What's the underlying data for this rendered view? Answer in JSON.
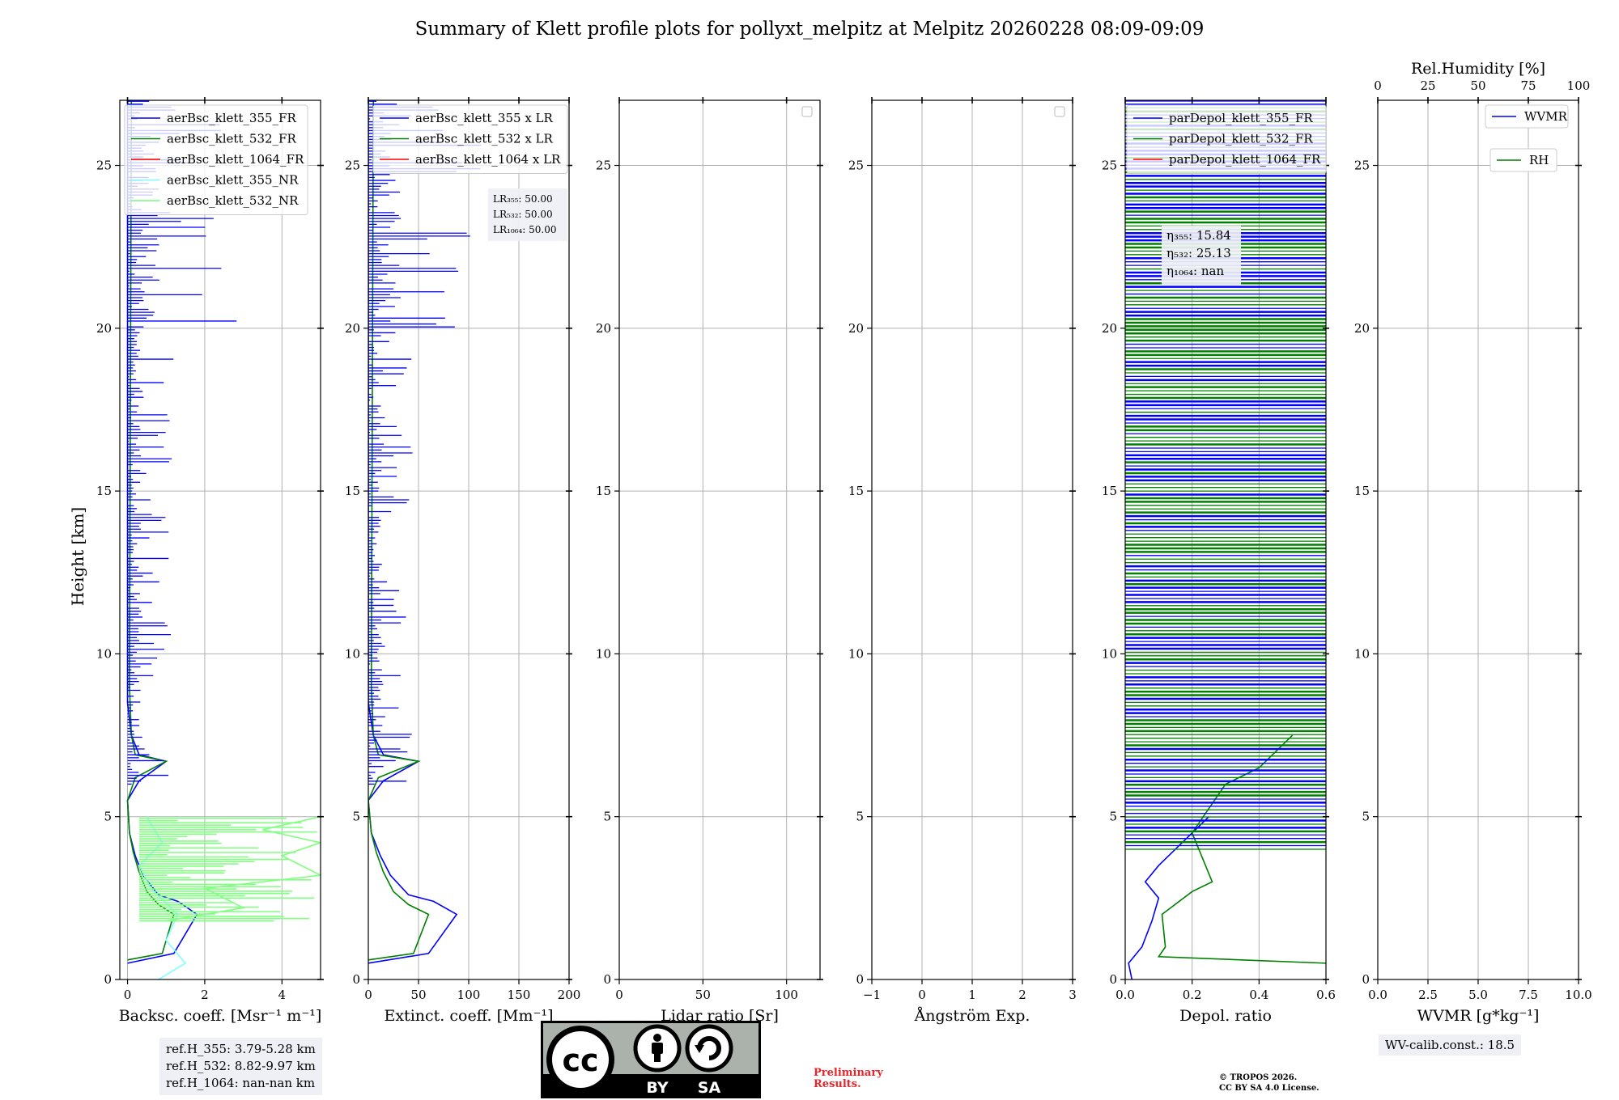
{
  "title": "Summary of Klett profile plots for pollyxt_melpitz at Melpitz 20260228 08:09-09:09",
  "colors": {
    "blue": "#0000ff",
    "green": "#008000",
    "red": "#ff0000",
    "cyan": "#80ffff",
    "lightgreen": "#80ff80"
  },
  "chart_data": [
    {
      "type": "line",
      "id": "backscatter",
      "xlabel": "Backsc. coeff. [Msr⁻¹ m⁻¹]",
      "ylabel": "Height [km]",
      "xlim": [
        -0.2,
        5
      ],
      "ylim": [
        0,
        27
      ],
      "xticks": [
        0,
        2,
        4
      ],
      "yticks": [
        0,
        5,
        10,
        15,
        20,
        25
      ],
      "grid": true,
      "legend": [
        "aerBsc_klett_355_FR",
        "aerBsc_klett_532_FR",
        "aerBsc_klett_1064_FR",
        "aerBsc_klett_355_NR",
        "aerBsc_klett_532_NR"
      ],
      "legend_colors": [
        "#0000ff",
        "#008000",
        "#ff0000",
        "#80ffff",
        "#80ff80"
      ],
      "series": [
        {
          "name": "aerBsc_klett_355_FR",
          "color": "#0000ff",
          "x": [
            0.0,
            1.2,
            1.8,
            1.3,
            0.8,
            0.4,
            0.2,
            0.05,
            0.0,
            0.3,
            1.0,
            0.3,
            0.1,
            0.0,
            0.0
          ],
          "y": [
            0.5,
            0.8,
            2.0,
            2.4,
            2.6,
            3.2,
            3.8,
            4.5,
            5.5,
            6.1,
            6.7,
            6.9,
            7.5,
            8.5,
            27
          ]
        },
        {
          "name": "aerBsc_klett_532_FR",
          "color": "#008000",
          "x": [
            0.0,
            0.9,
            1.2,
            0.8,
            0.5,
            0.3,
            0.15,
            0.05,
            0.0,
            0.2,
            1.0,
            0.2,
            0.1,
            0.05,
            0.1
          ],
          "y": [
            0.6,
            0.8,
            2.0,
            2.3,
            2.7,
            3.3,
            3.9,
            4.5,
            5.5,
            6.2,
            6.7,
            6.9,
            7.5,
            9.0,
            27
          ]
        },
        {
          "name": "aerBsc_klett_355_NR",
          "color": "#80ffff",
          "x": [
            0.8,
            1.5,
            1.0,
            1.3,
            0.6,
            0.3,
            0.9,
            0.5
          ],
          "y": [
            0.0,
            0.5,
            1.2,
            2.0,
            2.8,
            3.5,
            4.2,
            5.0
          ]
        },
        {
          "name": "aerBsc_klett_532_NR",
          "color": "#80ff80",
          "x": [
            1.0,
            3.0,
            2.0,
            5.0,
            4.0,
            5.0,
            3.5,
            5.0
          ],
          "y": [
            1.8,
            2.2,
            2.8,
            3.2,
            3.8,
            4.2,
            4.6,
            5.0
          ]
        }
      ]
    },
    {
      "type": "line",
      "id": "extinction",
      "xlabel": "Extinct. coeff. [Mm⁻¹]",
      "xlim": [
        0,
        200
      ],
      "ylim": [
        0,
        27
      ],
      "xticks": [
        0,
        50,
        100,
        150,
        200
      ],
      "yticks": [
        0,
        5,
        10,
        15,
        20,
        25
      ],
      "grid": true,
      "legend": [
        "aerBsc_klett_355 x LR",
        "aerBsc_klett_532 x LR",
        "aerBsc_klett_1064 x LR"
      ],
      "legend_colors": [
        "#0000ff",
        "#008000",
        "#ff0000"
      ],
      "annotation": [
        "LR₃₅₅: 50.00",
        "LR₅₃₂: 50.00",
        "LR₁₀₆₄: 50.00"
      ],
      "series": [
        {
          "name": "aerBsc_klett_355 x LR",
          "color": "#0000ff",
          "x": [
            0,
            60,
            88,
            65,
            40,
            22,
            12,
            3,
            0,
            15,
            50,
            15,
            5,
            0,
            0
          ],
          "y": [
            0.5,
            0.8,
            2.0,
            2.4,
            2.6,
            3.2,
            3.8,
            4.5,
            5.5,
            6.1,
            6.7,
            6.9,
            7.5,
            8.5,
            27
          ]
        },
        {
          "name": "aerBsc_klett_532 x LR",
          "color": "#008000",
          "x": [
            0,
            45,
            60,
            40,
            25,
            15,
            8,
            3,
            0,
            10,
            50,
            10,
            5,
            3,
            5
          ],
          "y": [
            0.6,
            0.8,
            2.0,
            2.3,
            2.7,
            3.3,
            3.9,
            4.5,
            5.5,
            6.2,
            6.7,
            6.9,
            7.5,
            9.0,
            27
          ]
        }
      ]
    },
    {
      "type": "line",
      "id": "lidar-ratio",
      "xlabel": "Lidar ratio [Sr]",
      "xlim": [
        0,
        120
      ],
      "ylim": [
        0,
        27
      ],
      "xticks": [
        0,
        50,
        100
      ],
      "yticks": [
        0,
        5,
        10,
        15,
        20,
        25
      ],
      "grid": true,
      "series": []
    },
    {
      "type": "line",
      "id": "angstrom",
      "xlabel": "Ångström Exp.",
      "xlim": [
        -1,
        3
      ],
      "ylim": [
        0,
        27
      ],
      "xticks": [
        -1,
        0,
        1,
        2,
        3
      ],
      "yticks": [
        0,
        5,
        10,
        15,
        20,
        25
      ],
      "grid": true,
      "series": []
    },
    {
      "type": "line",
      "id": "depol",
      "xlabel": "Depol. ratio",
      "xlim": [
        0,
        0.6
      ],
      "ylim": [
        0,
        27
      ],
      "xticks": [
        0.0,
        0.2,
        0.4,
        0.6
      ],
      "yticks": [
        0,
        5,
        10,
        15,
        20,
        25
      ],
      "grid": true,
      "legend": [
        "parDepol_klett_355_FR",
        "parDepol_klett_532_FR",
        "parDepol_klett_1064_FR"
      ],
      "legend_colors": [
        "#0000ff",
        "#008000",
        "#ff0000"
      ],
      "annotation": [
        "η₃₅₅: 15.84",
        "η₅₃₂: 25.13",
        "η₁₀₆₄: nan"
      ],
      "series": [
        {
          "name": "parDepol_klett_355_FR",
          "color": "#0000ff",
          "x": [
            0.02,
            0.01,
            0.05,
            0.08,
            0.1,
            0.06,
            0.1,
            0.15,
            0.2,
            0.25
          ],
          "y": [
            0.0,
            0.5,
            1.0,
            1.8,
            2.5,
            3.0,
            3.5,
            4.0,
            4.5,
            5.0
          ]
        },
        {
          "name": "parDepol_klett_532_FR",
          "color": "#008000",
          "x": [
            0.6,
            0.1,
            0.12,
            0.11,
            0.2,
            0.26,
            0.24,
            0.22,
            0.2,
            0.3,
            0.4,
            0.45,
            0.5
          ],
          "y": [
            0.5,
            0.7,
            1.0,
            2.0,
            2.7,
            3.0,
            3.5,
            4.0,
            4.5,
            6.0,
            6.5,
            7.0,
            7.5
          ]
        }
      ]
    },
    {
      "type": "line",
      "id": "wvmr",
      "xlabel": "WVMR [g*kg⁻¹]",
      "xlim": [
        0,
        10
      ],
      "ylim": [
        0,
        27
      ],
      "xticks": [
        0.0,
        2.5,
        5.0,
        7.5,
        10.0
      ],
      "yticks": [
        0,
        5,
        10,
        15,
        20,
        25
      ],
      "top_xlabel": "Rel.Humidity [%]",
      "top_xticks": [
        0,
        25,
        50,
        75,
        100
      ],
      "grid": true,
      "legend": [
        "WVMR",
        "RH"
      ],
      "legend_colors": [
        "#0000ff",
        "#008000"
      ],
      "series": []
    }
  ],
  "refbox": [
    "ref.H_355: 3.79-5.28 km",
    "ref.H_532: 8.82-9.97 km",
    "ref.H_1064: nan-nan km"
  ],
  "wvbox": "WV-calib.const.: 18.5",
  "license": {
    "cc": "cc",
    "by": "BY",
    "sa": "SA"
  },
  "prelim": [
    "Preliminary",
    "Results."
  ],
  "copyright": [
    "© TROPOS 2026.",
    "CC BY SA 4.0 License."
  ]
}
